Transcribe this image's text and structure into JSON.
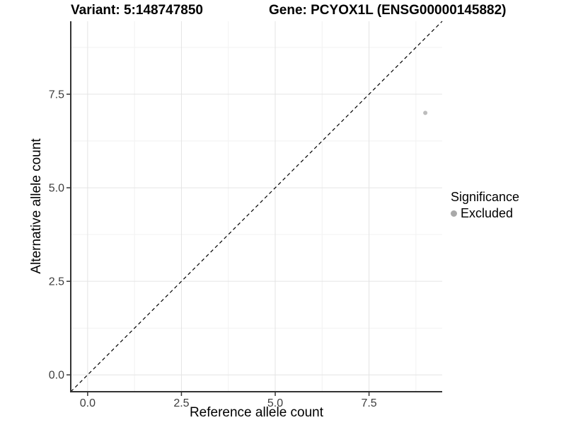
{
  "chart_data": {
    "type": "scatter",
    "title_variant": "Variant: 5:148747850",
    "title_gene": "Gene: PCYOX1L (ENSG00000145882)",
    "xlabel": "Reference allele count",
    "ylabel": "Alternative allele count",
    "xlim": [
      -0.45,
      9.45
    ],
    "ylim": [
      -0.45,
      9.45
    ],
    "x_ticks": {
      "values": [
        0,
        2.5,
        5,
        7.5
      ],
      "labels": [
        "0.0",
        "2.5",
        "5.0",
        "7.5"
      ]
    },
    "y_ticks": {
      "values": [
        0,
        2.5,
        5,
        7.5
      ],
      "labels": [
        "0.0",
        "2.5",
        "5.0",
        "7.5"
      ]
    },
    "minor_ticks": [
      1.25,
      3.75,
      6.25,
      8.75
    ],
    "grid": {
      "show": true,
      "major_color": "#e4e4e4",
      "minor_color": "#f2f2f2"
    },
    "axis_color": "#333333",
    "tick_label_color": "#3d3d3d",
    "reference_line": {
      "type": "identity",
      "slope": 1,
      "intercept": 0,
      "line_style": "dashed",
      "color": "#000000"
    },
    "series": [
      {
        "name": "Excluded",
        "color": "#bdbdbd",
        "points": [
          {
            "x": 9,
            "y": 7
          }
        ]
      }
    ],
    "legend": {
      "position": "right",
      "title": "Significance",
      "items": [
        {
          "label": "Excluded",
          "color": "#a9a9a9"
        }
      ]
    }
  }
}
